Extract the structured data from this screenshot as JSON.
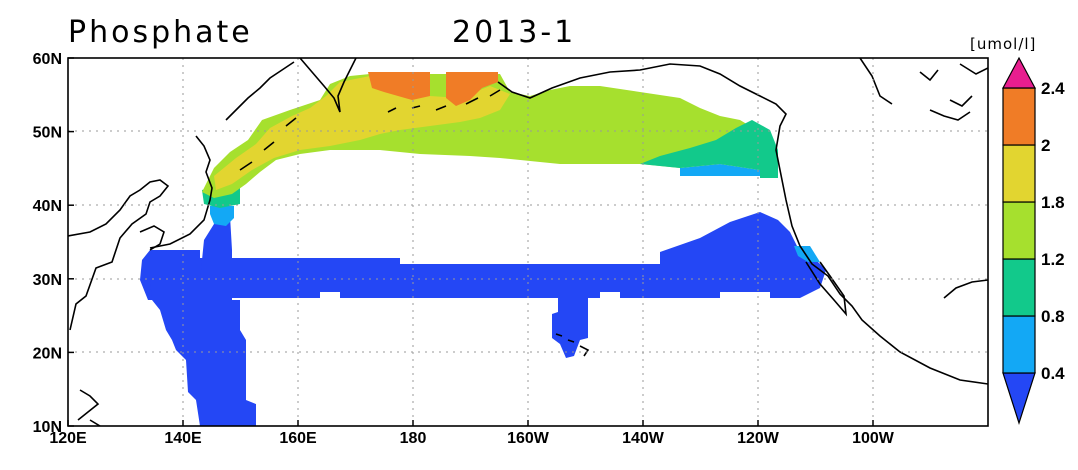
{
  "map": {
    "title": "Phosphate",
    "date": "2013-1",
    "units": "[umol/l]",
    "lon_ticks": [
      "120E",
      "140E",
      "160E",
      "180",
      "160W",
      "140W",
      "120W",
      "100W"
    ],
    "lat_ticks": [
      "60N",
      "50N",
      "40N",
      "30N",
      "20N",
      "10N"
    ],
    "colorbar": {
      "colors": [
        "#2447f5",
        "#13a8f5",
        "#12c98b",
        "#a6e02e",
        "#e2d530",
        "#f07c26",
        "#e81e8f"
      ],
      "labels": [
        "0.4",
        "0.8",
        "1.2",
        "1.8",
        "2",
        "2.4"
      ]
    },
    "regions": [
      {
        "name": "subtropical-band",
        "level": "0.4"
      },
      {
        "name": "western-boundary",
        "level": "0.4"
      },
      {
        "name": "hawaii-spur",
        "level": "0.4"
      },
      {
        "name": "east-rise",
        "level": "0.4"
      },
      {
        "name": "subarctic-gyre",
        "level": "1.8"
      },
      {
        "name": "okhotsk-patch",
        "level": "2"
      },
      {
        "name": "alaska-coast",
        "level": "1.2"
      }
    ]
  }
}
